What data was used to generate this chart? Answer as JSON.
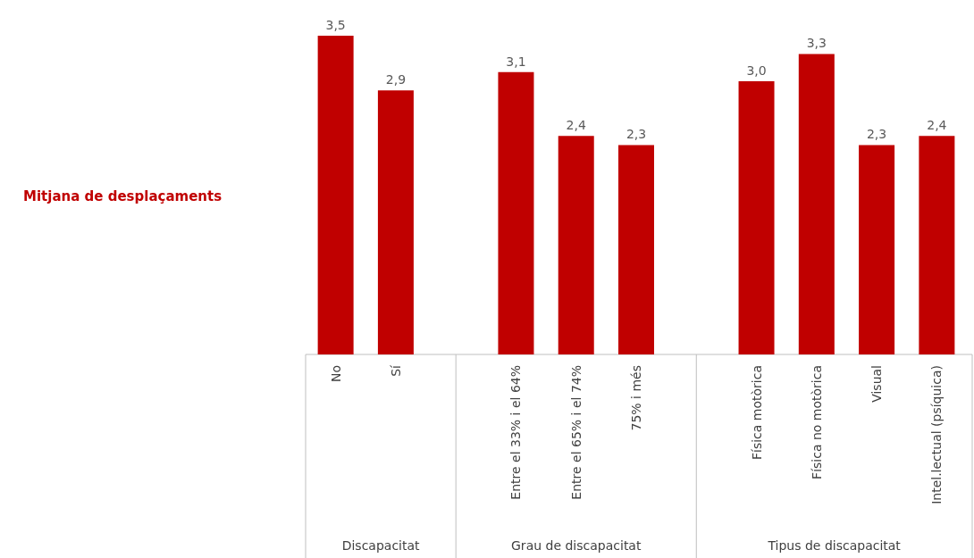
{
  "chart_data": {
    "type": "bar",
    "categories": [
      "No",
      "Sí",
      null,
      "Entre el 33% i el 64%",
      "Entre el 65% i el 74%",
      "75% i més",
      null,
      "Física motòrica",
      "Física no motòrica",
      "Visual",
      "Intel.lectual (psíquica)"
    ],
    "values": [
      3.5,
      2.9,
      null,
      3.1,
      2.4,
      2.3,
      null,
      3.0,
      3.3,
      2.3,
      2.4
    ],
    "value_labels": [
      "3,5",
      "2,9",
      null,
      "3,1",
      "2,4",
      "2,3",
      null,
      "3,0",
      "3,3",
      "2,3",
      "2,4"
    ],
    "color": "#c00000",
    "annotations": [
      "Discapacitat",
      "Grau de discapacitat",
      "Tipus de discapacitat",
      "Mitjana de desplaçaments"
    ]
  }
}
